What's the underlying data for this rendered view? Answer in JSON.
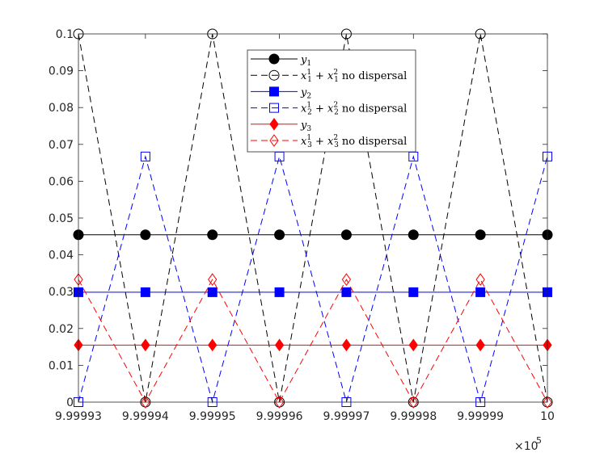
{
  "chart_data": {
    "type": "line",
    "x": [
      999993,
      999994,
      999995,
      999996,
      999997,
      999998,
      999999,
      1000000
    ],
    "xticks": [
      "9.99993",
      "9.99994",
      "9.99995",
      "9.99996",
      "9.99997",
      "9.99998",
      "9.99999",
      "10"
    ],
    "x_exponent_label": "×10",
    "x_exponent_power": "5",
    "xlim": [
      999993,
      1000000
    ],
    "ylim": [
      0,
      0.1
    ],
    "yticks": [
      "0",
      "0.01",
      "0.02",
      "0.03",
      "0.04",
      "0.05",
      "0.06",
      "0.07",
      "0.08",
      "0.09",
      "0.1"
    ],
    "ytick_values": [
      0,
      0.01,
      0.02,
      0.03,
      0.04,
      0.05,
      0.06,
      0.07,
      0.08,
      0.09,
      0.1
    ],
    "grid": false,
    "legend_position": "top-center",
    "series": [
      {
        "name": "y1",
        "legend_main": "y",
        "legend_sub": "1",
        "legend_rest": "",
        "color": "#000000",
        "dash": "solid",
        "marker": "circle",
        "filled": true,
        "values": [
          0.04545,
          0.04545,
          0.04545,
          0.04545,
          0.04545,
          0.04545,
          0.04545,
          0.04545
        ]
      },
      {
        "name": "x1^1 + x1^2 no dispersal",
        "legend_main": "x",
        "legend_sub": "1",
        "legend_sup": "1",
        "legend_main2": "x",
        "legend_sub2": "1",
        "legend_sup2": "2",
        "legend_rest": "no dispersal",
        "color": "#000000",
        "dash": "dashed",
        "marker": "circle",
        "filled": false,
        "values": [
          0.1,
          0,
          0.1,
          0,
          0.1,
          0,
          0.1,
          0
        ]
      },
      {
        "name": "y2",
        "legend_main": "y",
        "legend_sub": "2",
        "legend_rest": "",
        "color": "#0000ff",
        "dash": "solid",
        "marker": "square",
        "filled": true,
        "values": [
          0.02985,
          0.02985,
          0.02985,
          0.02985,
          0.02985,
          0.02985,
          0.02985,
          0.02985
        ]
      },
      {
        "name": "x2^1 + x2^2 no dispersal",
        "legend_main": "x",
        "legend_sub": "2",
        "legend_sup": "1",
        "legend_main2": "x",
        "legend_sub2": "2",
        "legend_sup2": "2",
        "legend_rest": "no dispersal",
        "color": "#0000ff",
        "dash": "dashed",
        "marker": "square",
        "filled": false,
        "values": [
          0,
          0.0667,
          0,
          0.0667,
          0,
          0.0667,
          0,
          0.0667
        ]
      },
      {
        "name": "y3",
        "legend_main": "y",
        "legend_sub": "3",
        "legend_rest": "",
        "color": "#ff0000",
        "dash": "solid",
        "marker": "diamond",
        "filled": true,
        "values": [
          0.0155,
          0.0155,
          0.0155,
          0.0155,
          0.0155,
          0.0155,
          0.0155,
          0.0155
        ]
      },
      {
        "name": "x3^1 + x3^2 no dispersal",
        "legend_main": "x",
        "legend_sub": "3",
        "legend_sup": "1",
        "legend_main2": "x",
        "legend_sub2": "3",
        "legend_sup2": "2",
        "legend_rest": "no dispersal",
        "color": "#ff0000",
        "dash": "dashed",
        "marker": "diamond",
        "filled": false,
        "values": [
          0.0333,
          0,
          0.0333,
          0,
          0.0333,
          0,
          0.0333,
          0
        ]
      }
    ]
  }
}
